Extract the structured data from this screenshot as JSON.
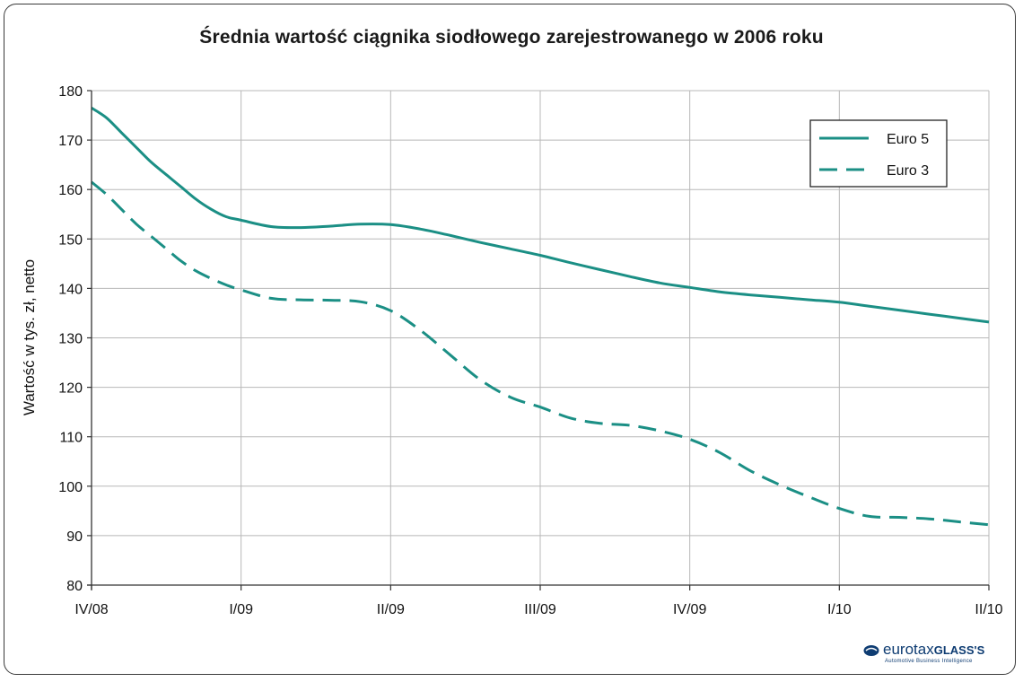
{
  "chart_data": {
    "type": "line",
    "title": "Średnia wartość ciągnika siodłowego zarejestrowanego w 2006 roku",
    "ylabel": "Wartość w tys. zł, netto",
    "xlabel": "",
    "categories": [
      "IV/08",
      "I/09",
      "II/09",
      "III/09",
      "IV/09",
      "I/10",
      "II/10"
    ],
    "ylim": [
      80,
      180
    ],
    "yticks": [
      80,
      90,
      100,
      110,
      120,
      130,
      140,
      150,
      160,
      170,
      180
    ],
    "grid": true,
    "legend_position": "top-right",
    "series": [
      {
        "name": "Euro 5",
        "style": "solid",
        "color": "#1b8f85",
        "x": [
          0,
          0.1,
          0.2,
          0.3,
          0.4,
          0.5,
          0.6,
          0.7,
          0.8,
          0.9,
          1.0,
          1.2,
          1.4,
          1.6,
          1.8,
          2.0,
          2.2,
          2.4,
          2.6,
          2.8,
          3.0,
          3.2,
          3.4,
          3.6,
          3.8,
          4.0,
          4.2,
          4.4,
          4.6,
          4.8,
          5.0,
          5.2,
          5.4,
          5.6,
          5.8,
          6.0
        ],
        "values": [
          176.5,
          174.5,
          171.5,
          168.5,
          165.5,
          163,
          160.5,
          158,
          156,
          154.5,
          153.8,
          152.5,
          152.3,
          152.6,
          153.0,
          152.9,
          152.0,
          150.7,
          149.3,
          148.0,
          146.7,
          145.2,
          143.8,
          142.4,
          141.1,
          140.2,
          139.3,
          138.7,
          138.2,
          137.7,
          137.2,
          136.4,
          135.6,
          134.8,
          134.0,
          133.2
        ]
      },
      {
        "name": "Euro 3",
        "style": "dashed",
        "color": "#1b8f85",
        "x": [
          0,
          0.1,
          0.2,
          0.3,
          0.4,
          0.5,
          0.6,
          0.7,
          0.8,
          0.9,
          1.0,
          1.2,
          1.4,
          1.6,
          1.8,
          2.0,
          2.2,
          2.4,
          2.6,
          2.8,
          3.0,
          3.2,
          3.4,
          3.6,
          3.8,
          4.0,
          4.2,
          4.4,
          4.6,
          4.8,
          5.0,
          5.2,
          5.4,
          5.6,
          5.8,
          6.0
        ],
        "values": [
          161.5,
          159,
          156,
          153,
          150.5,
          148,
          145.5,
          143.5,
          142,
          140.7,
          139.7,
          138,
          137.7,
          137.6,
          137.3,
          135.5,
          131.5,
          126.5,
          121.5,
          118.0,
          116.0,
          113.8,
          112.7,
          112.3,
          111.2,
          109.5,
          106.8,
          103.2,
          100.3,
          97.8,
          95.5,
          93.9,
          93.7,
          93.4,
          92.8,
          92.2
        ]
      }
    ]
  },
  "logo": {
    "name": "eurotax",
    "name_bold": "GLASS'S",
    "tagline": "Automotive Business Intelligence"
  }
}
